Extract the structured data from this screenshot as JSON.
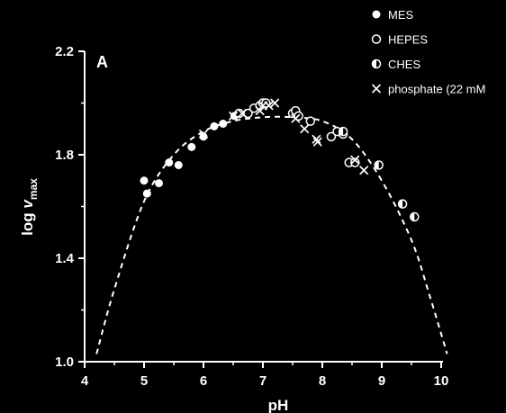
{
  "chart_data": {
    "type": "scatter",
    "panel_label": "A",
    "xlabel": "pH",
    "ylabel_main": "log ",
    "ylabel_italic": "v",
    "ylabel_sub": "max",
    "xlim": [
      4,
      10
    ],
    "ylim": [
      1.0,
      2.2
    ],
    "x_ticks": [
      "4",
      "5",
      "6",
      "7",
      "8",
      "9",
      "10"
    ],
    "y_ticks": [
      "1.0",
      "1.4",
      "1.8",
      "2.2"
    ],
    "legend_position": "top-right",
    "grid": false,
    "colors": {
      "background": "#000000",
      "foreground": "#ffffff"
    },
    "series": [
      {
        "name": "MES",
        "marker": "filled-circle",
        "x": [
          5.0,
          5.05,
          5.25,
          5.42,
          5.58,
          5.8,
          6.0,
          6.18,
          6.33,
          6.52
        ],
        "y": [
          1.7,
          1.65,
          1.69,
          1.77,
          1.76,
          1.83,
          1.87,
          1.91,
          1.92,
          1.95
        ]
      },
      {
        "name": "HEPES",
        "marker": "open-circle",
        "x": [
          6.6,
          6.75,
          6.85,
          6.95,
          7.0,
          7.05,
          7.5,
          7.55,
          7.6,
          7.8,
          8.15,
          8.25,
          8.35,
          8.45,
          8.55
        ],
        "y": [
          1.96,
          1.96,
          1.98,
          1.99,
          2.0,
          2.0,
          1.96,
          1.97,
          1.95,
          1.93,
          1.87,
          1.89,
          1.88,
          1.77,
          1.77
        ]
      },
      {
        "name": "CHES",
        "marker": "half-circle",
        "x": [
          8.35,
          8.95,
          9.35,
          9.55
        ],
        "y": [
          1.89,
          1.76,
          1.61,
          1.56
        ]
      },
      {
        "name": "phosphate (22 mM",
        "marker": "cross",
        "x": [
          6.0,
          6.5,
          6.65,
          6.95,
          7.0,
          7.1,
          7.2,
          7.55,
          7.7,
          7.9,
          7.92,
          8.55,
          8.7
        ],
        "y": [
          1.88,
          1.95,
          1.96,
          1.97,
          1.99,
          1.99,
          2.0,
          1.94,
          1.9,
          1.86,
          1.85,
          1.78,
          1.74
        ]
      }
    ],
    "fit_curve": {
      "style": "dashed",
      "x": [
        4.2,
        4.5,
        5.0,
        5.5,
        6.0,
        6.5,
        7.0,
        7.5,
        8.0,
        8.5,
        9.0,
        9.5,
        9.8,
        10.1
      ],
      "y": [
        1.03,
        1.28,
        1.62,
        1.8,
        1.89,
        1.93,
        1.945,
        1.945,
        1.93,
        1.86,
        1.7,
        1.47,
        1.26,
        1.03
      ]
    }
  }
}
